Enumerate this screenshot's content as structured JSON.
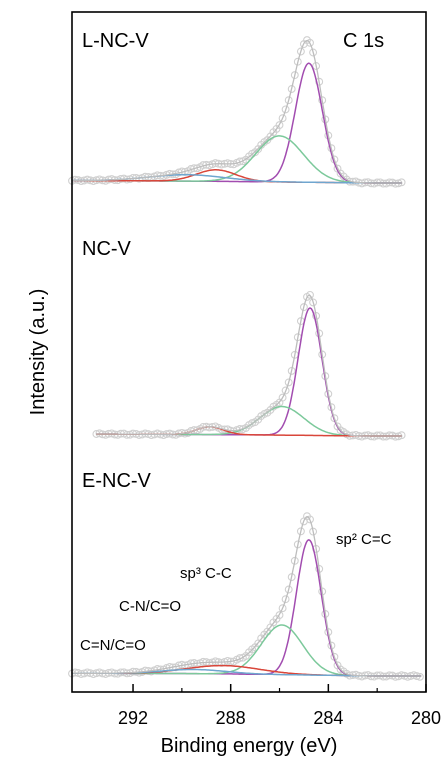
{
  "chart_data": {
    "type": "line",
    "xlabel": "Binding energy (eV)",
    "ylabel": "Intensity (a.u.)",
    "xlim": [
      294.5,
      280
    ],
    "x_reversed": true,
    "xticks": [
      292,
      288,
      284,
      280
    ],
    "minor_xticks": [
      290,
      286,
      282
    ],
    "corner_label": "C 1s",
    "colors": {
      "data": "#d0d0d0",
      "envelope": "#bdbdbd",
      "baseline": "#b0b0b0",
      "sp2": "#a24db0",
      "sp3": "#7cc99b",
      "CN": "#d9463a",
      "CNO": "#6fa6cf"
    },
    "component_labels": [
      {
        "text": "sp² C=C",
        "series": "sp2"
      },
      {
        "text": "sp³ C-C",
        "series": "sp3"
      },
      {
        "text": "C-N/C=O",
        "series": "CN"
      },
      {
        "text": "C=N/C=O",
        "series": "CNO"
      }
    ],
    "panels": [
      {
        "label": "L-NC-V",
        "baseline": [
          [
            294.5,
            0.02
          ],
          [
            290,
            0.015
          ],
          [
            288,
            0.012
          ],
          [
            286,
            0.008
          ],
          [
            284,
            0.004
          ],
          [
            282,
            0.0
          ],
          [
            281,
            0.0
          ]
        ],
        "components": [
          {
            "key": "sp2",
            "center": 284.8,
            "height": 0.93,
            "fwhm": 1.3
          },
          {
            "key": "sp3",
            "center": 286.0,
            "height": 0.36,
            "fwhm": 2.3
          },
          {
            "key": "CN",
            "center": 288.6,
            "height": 0.09,
            "fwhm": 1.9
          },
          {
            "key": "CNO",
            "center": 289.8,
            "height": 0.05,
            "fwhm": 3.6
          }
        ]
      },
      {
        "label": "NC-V",
        "baseline": [
          [
            293.5,
            0.015
          ],
          [
            290,
            0.012
          ],
          [
            288,
            0.01
          ],
          [
            286,
            0.007
          ],
          [
            284,
            0.003
          ],
          [
            282,
            0.0
          ],
          [
            281,
            0.0
          ]
        ],
        "components": [
          {
            "key": "sp2",
            "center": 284.75,
            "height": 0.98,
            "fwhm": 1.15
          },
          {
            "key": "sp3",
            "center": 285.9,
            "height": 0.22,
            "fwhm": 2.1
          },
          {
            "key": "CN",
            "center": 288.85,
            "height": 0.06,
            "fwhm": 1.3
          }
        ]
      },
      {
        "label": "E-NC-V",
        "baseline": [
          [
            294.5,
            0.02
          ],
          [
            290,
            0.018
          ],
          [
            288,
            0.015
          ],
          [
            286,
            0.01
          ],
          [
            284,
            0.005
          ],
          [
            282,
            0.0
          ],
          [
            280.2,
            0.0
          ]
        ],
        "components": [
          {
            "key": "sp2",
            "center": 284.8,
            "height": 0.98,
            "fwhm": 1.2
          },
          {
            "key": "sp3",
            "center": 285.9,
            "height": 0.36,
            "fwhm": 2.0
          },
          {
            "key": "CN",
            "center": 288.3,
            "height": 0.06,
            "fwhm": 3.5
          },
          {
            "key": "CNO",
            "center": 289.5,
            "height": 0.03,
            "fwhm": 3.0
          }
        ]
      }
    ]
  }
}
